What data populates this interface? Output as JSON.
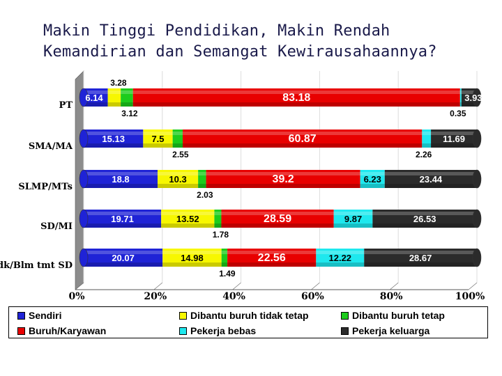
{
  "title": {
    "line1": "Makin Tinggi Pendidikan, Makin Rendah",
    "line2": "Kemandirian dan Semangat Kewirausahaannya?"
  },
  "colors": {
    "Sendiri": "#1f23d6",
    "Dibantu buruh tidak tetap": "#f7f700",
    "Dibantu buruh tetap": "#1ccc1c",
    "Buruh/Karyawan": "#e80000",
    "Pekerja bebas": "#1ee8ee",
    "Pekerja keluarga": "#2b2b2b"
  },
  "chart_data": {
    "type": "bar",
    "orientation": "horizontal",
    "stacked": "percent",
    "title": "Makin Tinggi Pendidikan, Makin Rendah Kemandirian dan Semangat Kewirausahaannya?",
    "categories": [
      "PT",
      "SMA/MA",
      "SLMP/MTs",
      "SD/MI",
      "Tdk/Blm tmt SD"
    ],
    "x_ticks": [
      "0%",
      "20%",
      "40%",
      "60%",
      "80%",
      "100%"
    ],
    "xlim": [
      0,
      100
    ],
    "legend_position": "bottom",
    "series": [
      {
        "name": "Sendiri",
        "values": [
          6.14,
          15.13,
          18.8,
          19.71,
          20.07
        ],
        "labels": [
          "6.14",
          "15.13",
          "18.8",
          "19.71",
          "20.07"
        ]
      },
      {
        "name": "Dibantu buruh tidak tetap",
        "values": [
          3.28,
          7.5,
          10.3,
          13.52,
          14.98
        ],
        "labels": [
          "3.28",
          "7.5",
          "10.3",
          "13.52",
          "14.98"
        ]
      },
      {
        "name": "Dibantu buruh tetap",
        "values": [
          3.12,
          2.55,
          2.03,
          1.78,
          1.49
        ],
        "labels": [
          "3.12",
          "2.55",
          "2.03",
          "1.78",
          "1.49"
        ]
      },
      {
        "name": "Buruh/Karyawan",
        "values": [
          83.18,
          60.87,
          39.2,
          28.59,
          22.56
        ],
        "labels": [
          "83.18",
          "60.87",
          "39.2",
          "28.59",
          "22.56"
        ]
      },
      {
        "name": "Pekerja bebas",
        "values": [
          0.35,
          2.26,
          6.23,
          9.87,
          12.22
        ],
        "labels": [
          "0.35",
          "2.26",
          "6.23",
          "9.87",
          "12.22"
        ]
      },
      {
        "name": "Pekerja keluarga",
        "values": [
          3.93,
          11.69,
          23.44,
          26.53,
          28.67
        ],
        "labels": [
          "3.93",
          "11.69",
          "23.44",
          "26.53",
          "28.67"
        ]
      }
    ]
  },
  "legend": {
    "items": [
      {
        "label": "Sendiri",
        "color": "#1f23d6"
      },
      {
        "label": "Dibantu buruh tidak tetap",
        "color": "#f7f700"
      },
      {
        "label": "Dibantu buruh tetap",
        "color": "#1ccc1c"
      },
      {
        "label": "Buruh/Karyawan",
        "color": "#e80000"
      },
      {
        "label": "Pekerja bebas",
        "color": "#1ee8ee"
      },
      {
        "label": "Pekerja keluarga",
        "color": "#2b2b2b"
      }
    ]
  }
}
